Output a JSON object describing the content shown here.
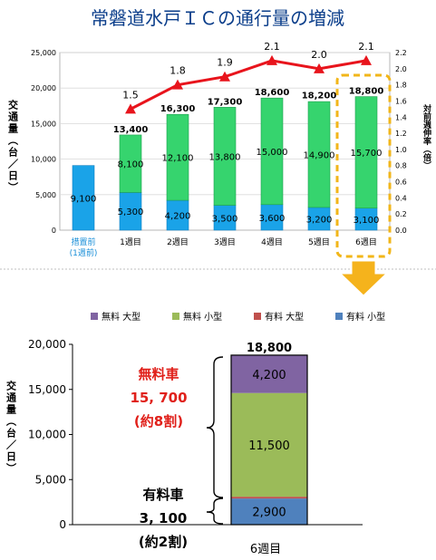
{
  "title": "常磐道水戸ＩＣの通行量の増減",
  "chart_data": [
    {
      "type": "bar",
      "ylabel": "交通量（台／日）",
      "y2label": "対前週伸率（倍）",
      "ylim": [
        0,
        25000
      ],
      "y2lim": [
        0,
        2.2
      ],
      "y_ticks": [
        "0",
        "5,000",
        "10,000",
        "15,000",
        "20,000",
        "25,000"
      ],
      "y2_ticks": [
        "0.0",
        "0.2",
        "0.4",
        "0.6",
        "0.8",
        "1.0",
        "1.2",
        "1.4",
        "1.6",
        "1.8",
        "2.0",
        "2.2"
      ],
      "categories": [
        "措置前",
        "1週目",
        "2週目",
        "3週目",
        "4週目",
        "5週目",
        "6週目"
      ],
      "category_sublabel": "(1週前)",
      "series": [
        {
          "name": "有料",
          "values": [
            9100,
            5300,
            4200,
            3500,
            3600,
            3200,
            3100
          ],
          "labels": [
            "9,100",
            "5,300",
            "4,200",
            "3,500",
            "3,600",
            "3,200",
            "3,100"
          ]
        },
        {
          "name": "無料",
          "values": [
            0,
            8100,
            12100,
            13800,
            15000,
            14900,
            15700
          ],
          "labels": [
            "",
            "8,100",
            "12,100",
            "13,800",
            "15,000",
            "14,900",
            "15,700"
          ]
        }
      ],
      "totals": [
        9100,
        13400,
        16300,
        17300,
        18600,
        18200,
        18800
      ],
      "total_labels": [
        "",
        "13,400",
        "16,300",
        "17,300",
        "18,600",
        "18,200",
        "18,800"
      ],
      "line": {
        "values": [
          null,
          1.5,
          1.8,
          1.9,
          2.1,
          2.0,
          2.1
        ],
        "labels": [
          "",
          "1.5",
          "1.8",
          "1.9",
          "2.1",
          "2.0",
          "2.1"
        ]
      },
      "highlight": "6週目"
    },
    {
      "type": "bar",
      "stacked": true,
      "ylabel": "交通量（台／日）",
      "ylim": [
        0,
        20000
      ],
      "y_ticks": [
        "0",
        "5,000",
        "10,000",
        "15,000",
        "20,000"
      ],
      "categories": [
        "6週目"
      ],
      "legend": [
        "無料 大型",
        "無料 小型",
        "有料 大型",
        "有料 小型"
      ],
      "legend_position": "top",
      "series": [
        {
          "name": "有料 小型",
          "values": [
            2900
          ],
          "label": "2,900",
          "color": "#4f81bd"
        },
        {
          "name": "有料 大型",
          "values": [
            200
          ],
          "label": "200",
          "color": "#c0504d"
        },
        {
          "name": "無料 小型",
          "values": [
            11500
          ],
          "label": "11,500",
          "color": "#9bbb59"
        },
        {
          "name": "無料 大型",
          "values": [
            4200
          ],
          "label": "4,200",
          "color": "#8064a2"
        }
      ],
      "total_label": "18,800",
      "annotations": {
        "free": {
          "name": "無料車",
          "value": "15, 700",
          "share": "(約8割)"
        },
        "toll": {
          "name": "有料車",
          "value": "3, 100",
          "share": "(約2割)"
        }
      }
    }
  ]
}
